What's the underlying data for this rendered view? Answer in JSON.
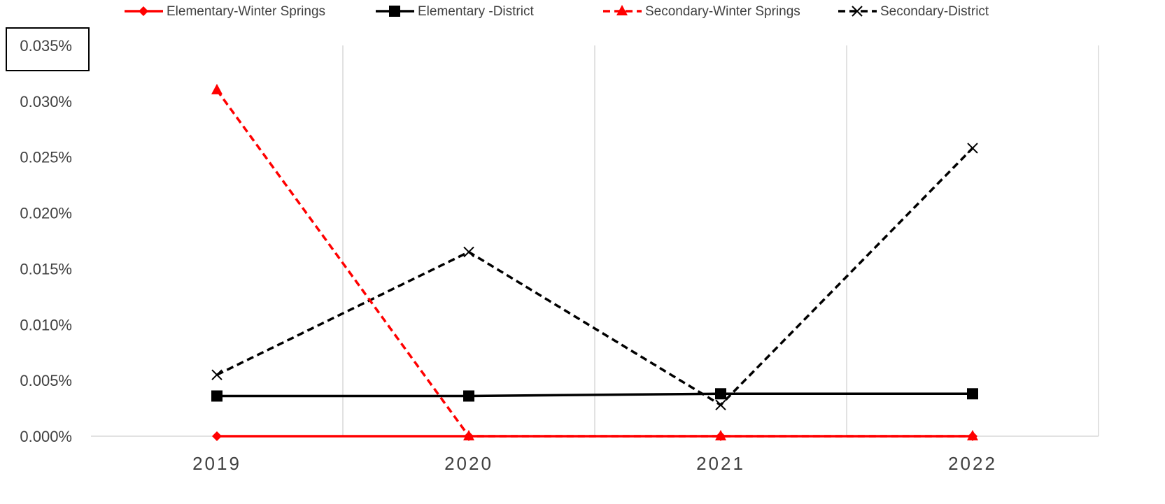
{
  "chart_data": {
    "type": "line",
    "title": "",
    "xlabel": "",
    "ylabel": "",
    "categories": [
      "2019",
      "2020",
      "2021",
      "2022"
    ],
    "ylim": [
      0,
      0.035
    ],
    "y_ticks": [
      "0.000%",
      "0.005%",
      "0.010%",
      "0.015%",
      "0.020%",
      "0.025%",
      "0.030%",
      "0.035%"
    ],
    "y_tick_values": [
      0,
      0.005,
      0.01,
      0.015,
      0.02,
      0.025,
      0.03,
      0.035
    ],
    "y_unit": "%",
    "grid": "vertical",
    "legend_position": "top",
    "series": [
      {
        "name": "Elementary-Winter Springs",
        "values": [
          0,
          0,
          0,
          0
        ],
        "color": "#ff0000",
        "dash": "solid",
        "marker": "diamond"
      },
      {
        "name": "Elementary -District",
        "values": [
          0.0036,
          0.0036,
          0.0038,
          0.0038
        ],
        "color": "#000000",
        "dash": "solid",
        "marker": "square"
      },
      {
        "name": "Secondary-Winter Springs",
        "values": [
          0.031,
          0,
          0,
          0
        ],
        "color": "#ff0000",
        "dash": "dashed",
        "marker": "triangle"
      },
      {
        "name": "Secondary-District",
        "values": [
          0.0055,
          0.0165,
          0.0028,
          0.0258
        ],
        "color": "#000000",
        "dash": "dashed",
        "marker": "x"
      }
    ]
  }
}
